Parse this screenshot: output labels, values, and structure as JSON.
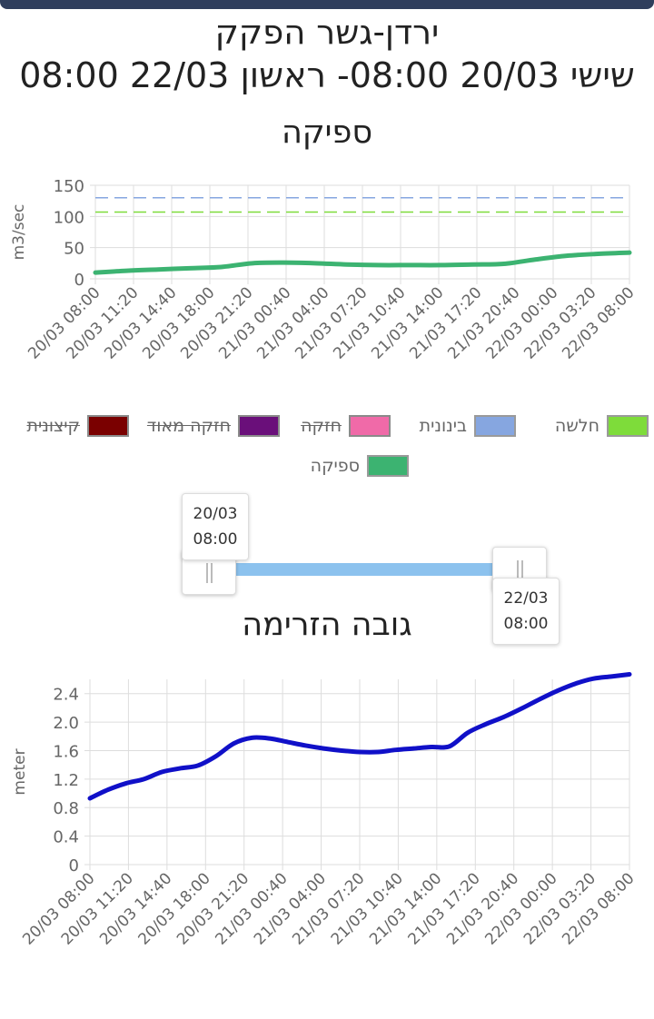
{
  "header": {
    "station": "ירדן-גשר הפקק",
    "range": "שישי 20/03 08:00- ראשון 22/03 08:00"
  },
  "flow_chart_title": "ספיקה",
  "level_chart_title": "גובה הזרימה",
  "legend": [
    {
      "label": "קיצונית",
      "color": "#7a0000",
      "active": false
    },
    {
      "label": "חזקה מאוד",
      "color": "#6a0f7a",
      "active": false
    },
    {
      "label": "חזקה",
      "color": "#f06aa8",
      "active": false
    },
    {
      "label": "בינונית",
      "color": "#86a6e0",
      "active": true
    },
    {
      "label": "חלשה",
      "color": "#7edc3a",
      "active": true
    },
    {
      "label": "ספיקה",
      "color": "#3cb371",
      "active": true
    }
  ],
  "slider": {
    "start_date": "20/03",
    "start_time": "08:00",
    "end_date": "22/03",
    "end_time": "08:00"
  },
  "chart_data": [
    {
      "type": "line",
      "title": "ספיקה",
      "ylabel": "m3/sec",
      "ylim": [
        0,
        150
      ],
      "yticks": [
        0,
        50,
        100,
        150
      ],
      "x_ticks": [
        "20/03 08:00",
        "20/03 11:20",
        "20/03 14:40",
        "20/03 18:00",
        "20/03 21:20",
        "21/03 00:40",
        "21/03 04:00",
        "21/03 07:20",
        "21/03 10:40",
        "21/03 14:00",
        "21/03 17:20",
        "21/03 20:40",
        "22/03 00:00",
        "22/03 03:20",
        "22/03 08:00"
      ],
      "thresholds": [
        {
          "name": "בינונית",
          "value": 130,
          "color": "#86a6e0"
        },
        {
          "name": "חלשה",
          "value": 107,
          "color": "#7edc3a"
        }
      ],
      "series": [
        {
          "name": "ספיקה",
          "color": "#3cb371",
          "values": [
            10,
            13,
            15,
            17,
            19,
            25,
            26,
            25,
            23,
            22,
            22,
            22,
            23,
            24,
            31,
            37,
            40,
            42
          ]
        }
      ]
    },
    {
      "type": "line",
      "title": "גובה הזרימה",
      "ylabel": "meter",
      "ylim": [
        0,
        2.6
      ],
      "yticks": [
        "0",
        "0.4",
        "0.8",
        "1.2",
        "1.6",
        "2.0",
        "2.4"
      ],
      "x_ticks": [
        "20/03 08:00",
        "20/03 11:20",
        "20/03 14:40",
        "20/03 18:00",
        "20/03 21:20",
        "21/03 00:40",
        "21/03 04:00",
        "21/03 07:20",
        "21/03 10:40",
        "21/03 14:00",
        "21/03 17:20",
        "21/03 20:40",
        "22/03 00:00",
        "22/03 03:20",
        "22/03 08:00"
      ],
      "series": [
        {
          "name": "",
          "color": "#1010c8",
          "values": [
            0.93,
            1.05,
            1.14,
            1.2,
            1.3,
            1.35,
            1.39,
            1.52,
            1.7,
            1.78,
            1.77,
            1.72,
            1.67,
            1.63,
            1.6,
            1.58,
            1.58,
            1.61,
            1.63,
            1.65,
            1.66,
            1.85,
            1.97,
            2.07,
            2.19,
            2.32,
            2.44,
            2.54,
            2.61,
            2.64,
            2.67
          ]
        }
      ]
    }
  ]
}
